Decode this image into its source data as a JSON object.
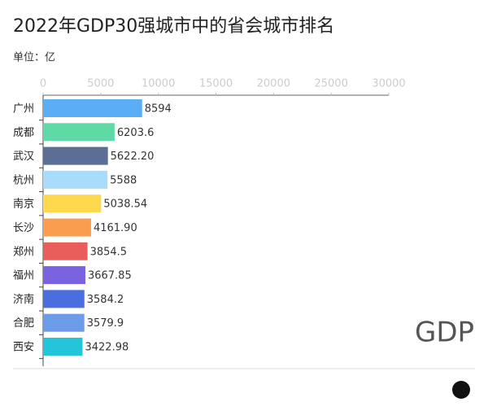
{
  "chart_data": {
    "type": "hbar",
    "title": "2022年GDP30强城市中的省会城市排名",
    "subtitle": "单位：亿",
    "annotation": "GDP",
    "categories": [
      "广州",
      "成都",
      "武汉",
      "杭州",
      "南京",
      "长沙",
      "郑州",
      "福州",
      "济南",
      "合肥",
      "西安"
    ],
    "values": [
      8594,
      6203.6,
      5622.2,
      5588,
      5038.54,
      4161.9,
      3854.5,
      3667.85,
      3584.2,
      3579.9,
      3422.98
    ],
    "value_labels": [
      "8594",
      "6203.6",
      "5622.20",
      "5588",
      "5038.54",
      "4161.90",
      "3854.5",
      "3667.85",
      "3584.2",
      "3579.9",
      "3422.98"
    ],
    "colors": [
      "#5aaef5",
      "#5fd9a6",
      "#5b6e96",
      "#a8dcfa",
      "#fed94e",
      "#fb9d4f",
      "#e95e5b",
      "#7a62e0",
      "#4a6ee0",
      "#6c9be8",
      "#23c5d9"
    ],
    "xlim": [
      0,
      30000
    ],
    "xticks": [
      0,
      5000,
      10000,
      15000,
      20000,
      25000,
      30000
    ]
  }
}
